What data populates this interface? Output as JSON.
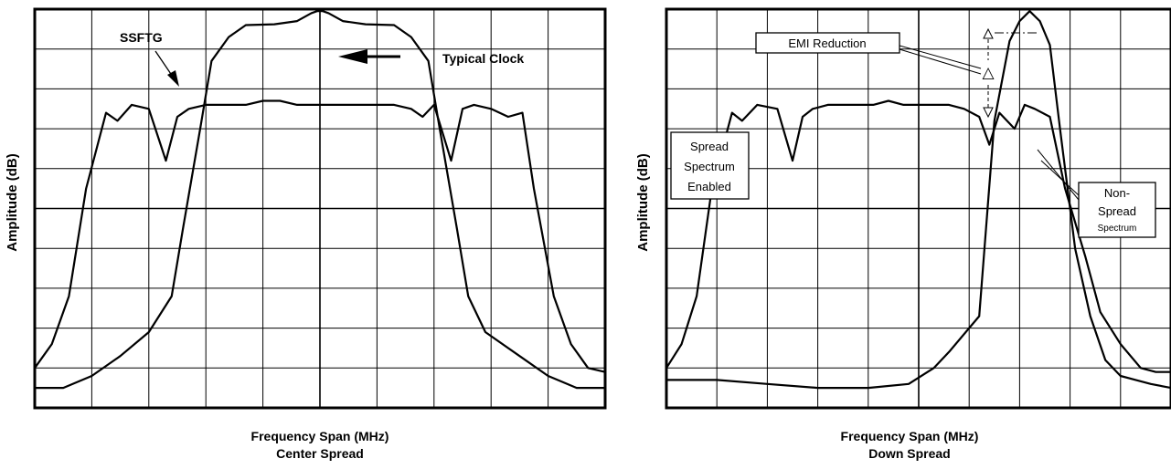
{
  "chart_data": [
    {
      "type": "line",
      "ylabel": "Amplitude (dB)",
      "xlabel": "Frequency Span (MHz)",
      "subtitle": "Center Spread",
      "annotations": {
        "ssftg": "SSFTG",
        "typical_clock": "Typical Clock"
      },
      "grid": true,
      "grid_divisions": {
        "x": 10,
        "y": 10
      },
      "xlim": [
        0,
        10
      ],
      "ylim": [
        0,
        10
      ],
      "series": [
        {
          "x": [
            0,
            0.5,
            1.0,
            1.5,
            2.0,
            2.4,
            2.6,
            2.9,
            3.1,
            3.4,
            3.7,
            4.2,
            4.6,
            4.85,
            4.95,
            5.05,
            5.15,
            5.4,
            5.8,
            6.3,
            6.6,
            6.9,
            7.1,
            7.4,
            7.6,
            7.9,
            8.5,
            9.0,
            9.5,
            10.0
          ],
          "y": [
            0.5,
            0.5,
            0.8,
            1.3,
            1.9,
            2.8,
            4.5,
            7.0,
            8.7,
            9.3,
            9.6,
            9.62,
            9.7,
            9.9,
            9.95,
            9.95,
            9.9,
            9.7,
            9.62,
            9.6,
            9.3,
            8.7,
            7.0,
            4.5,
            2.8,
            1.9,
            1.3,
            0.8,
            0.5,
            0.5
          ]
        },
        {
          "x": [
            0,
            0.3,
            0.6,
            0.9,
            1.25,
            1.45,
            1.7,
            2.0,
            2.3,
            2.5,
            2.7,
            3.0,
            3.2,
            3.4,
            3.7,
            4.0,
            4.3,
            4.6,
            4.9,
            5.1,
            5.4,
            5.7,
            6.0,
            6.3,
            6.6,
            6.8,
            7.0,
            7.3,
            7.5,
            7.7,
            8.0,
            8.3,
            8.55,
            8.75,
            9.1,
            9.4,
            9.7,
            10.0
          ],
          "y": [
            1.0,
            1.6,
            2.8,
            5.5,
            7.4,
            7.2,
            7.6,
            7.5,
            6.2,
            7.3,
            7.5,
            7.6,
            7.6,
            7.6,
            7.6,
            7.7,
            7.7,
            7.6,
            7.6,
            7.6,
            7.6,
            7.6,
            7.6,
            7.6,
            7.5,
            7.3,
            7.6,
            6.2,
            7.5,
            7.6,
            7.5,
            7.3,
            7.4,
            5.5,
            2.8,
            1.6,
            1.0,
            0.9
          ]
        }
      ]
    },
    {
      "type": "line",
      "ylabel": "Amplitude (dB)",
      "xlabel": "Frequency Span (MHz)",
      "subtitle": "Down Spread",
      "annotations": {
        "emi_reduction": "EMI Reduction",
        "delta": "△",
        "spread_line1": "Spread",
        "spread_line2": "Spectrum",
        "spread_line3": "Enabled",
        "non_line1": "Non-",
        "non_line2": "Spread",
        "non_line3": "Spectrum"
      },
      "grid": true,
      "grid_divisions": {
        "x": 10,
        "y": 10
      },
      "xlim": [
        0,
        10
      ],
      "ylim": [
        0,
        10
      ],
      "series": [
        {
          "x": [
            0,
            1.0,
            2.0,
            3.0,
            4.0,
            4.8,
            5.3,
            5.6,
            6.2,
            6.5,
            6.8,
            7.0,
            7.2,
            7.4,
            7.6,
            7.8,
            8.1,
            8.4,
            8.7,
            9.0,
            9.3,
            9.6,
            10.0
          ],
          "y": [
            0.7,
            0.7,
            0.6,
            0.5,
            0.5,
            0.6,
            1.0,
            1.4,
            2.3,
            7.2,
            9.2,
            9.7,
            9.95,
            9.7,
            9.1,
            7.0,
            4.0,
            2.3,
            1.2,
            0.8,
            0.7,
            0.6,
            0.5
          ]
        },
        {
          "x": [
            0,
            0.3,
            0.6,
            0.9,
            1.3,
            1.5,
            1.8,
            2.2,
            2.5,
            2.7,
            2.9,
            3.2,
            3.5,
            3.8,
            4.1,
            4.4,
            4.7,
            5.0,
            5.3,
            5.6,
            5.9,
            6.2,
            6.4,
            6.6,
            6.9,
            7.1,
            7.3,
            7.6,
            7.9,
            8.3,
            8.6,
            9.0,
            9.4,
            9.7,
            10.0
          ],
          "y": [
            1.0,
            1.6,
            2.8,
            5.5,
            7.4,
            7.2,
            7.6,
            7.5,
            6.2,
            7.3,
            7.5,
            7.6,
            7.6,
            7.6,
            7.6,
            7.7,
            7.6,
            7.6,
            7.6,
            7.6,
            7.5,
            7.3,
            6.6,
            7.4,
            7.0,
            7.6,
            7.5,
            7.3,
            5.5,
            3.8,
            2.4,
            1.6,
            1.0,
            0.9,
            0.9
          ]
        }
      ]
    }
  ],
  "colors": {
    "line": "#000000",
    "grid": "#000000",
    "background": "#ffffff"
  }
}
